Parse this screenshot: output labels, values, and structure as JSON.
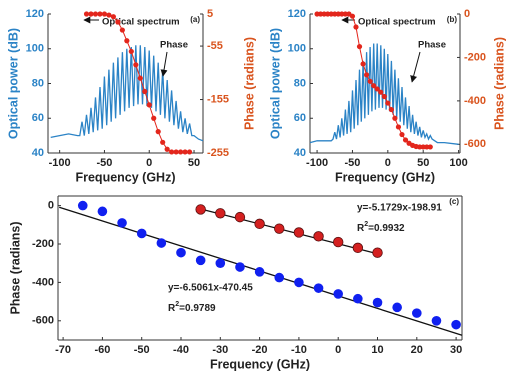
{
  "chart_data": [
    {
      "type": "line",
      "panel": "(a)",
      "xlabel": "Frequency (GHz)",
      "ylabel": "Optical power (dB)",
      "y2label": "Phase (radians)",
      "xlim": [
        -113,
        60
      ],
      "xticks": [
        -100,
        -50,
        0,
        50
      ],
      "ylim": [
        40,
        120
      ],
      "yticks": [
        40,
        60,
        80,
        100,
        120
      ],
      "y2lim": [
        -255,
        5
      ],
      "y2ticks": [
        5,
        -55,
        -155,
        -255
      ],
      "series": [
        {
          "name": "Optical spectrum",
          "color": "#2b83c6",
          "axis": "y",
          "x": [
            -110,
            -100,
            -90,
            -80,
            -77.5,
            -75,
            -72.5,
            -70,
            -67.5,
            -65,
            -62.5,
            -60,
            -57.5,
            -55,
            -52.5,
            -50,
            -47.5,
            -45,
            -42.5,
            -40,
            -37.5,
            -35,
            -32.5,
            -30,
            -27.5,
            -25,
            -22.5,
            -20,
            -17.5,
            -15,
            -12.5,
            -10,
            -7.5,
            -5,
            -2.5,
            0,
            2.5,
            5,
            7.5,
            10,
            12.5,
            15,
            17.5,
            20,
            22.5,
            25,
            27.5,
            30,
            32.5,
            35,
            37.5,
            40,
            42.5,
            45,
            47.5,
            50,
            55,
            60
          ],
          "values": [
            49,
            50,
            51,
            50,
            50,
            58,
            50,
            62,
            51,
            66,
            52,
            72,
            53,
            78,
            54,
            84,
            56,
            88,
            58,
            92,
            60,
            95,
            62,
            98,
            64,
            100,
            66,
            101,
            67,
            102,
            68,
            102,
            68,
            101,
            67,
            99,
            66,
            96,
            64,
            92,
            62,
            88,
            60,
            82,
            58,
            76,
            56,
            70,
            54,
            64,
            52,
            60,
            51,
            57,
            50,
            50,
            48,
            47
          ]
        },
        {
          "name": "Phase",
          "color": "#e3261c",
          "axis": "y2",
          "x": [
            -70,
            -65,
            -60,
            -55,
            -50,
            -45,
            -40,
            -35,
            -30,
            -25,
            -20,
            -15,
            -10,
            -5,
            0,
            5,
            10,
            15,
            20,
            25,
            30,
            35,
            40,
            45
          ],
          "values": [
            5,
            5,
            5,
            5,
            5,
            3,
            0,
            -10,
            -25,
            -45,
            -65,
            -90,
            -115,
            -140,
            -165,
            -190,
            -215,
            -235,
            -248,
            -253,
            -253,
            -253,
            -253,
            -253
          ]
        }
      ]
    },
    {
      "type": "line",
      "panel": "(b)",
      "xlabel": "Frequency (GHz)",
      "ylabel": "Optical power (dB)",
      "y2label": "Phase (radians)",
      "xlim": [
        -110,
        102
      ],
      "xticks": [
        -100,
        -50,
        0,
        50,
        100
      ],
      "ylim": [
        40,
        120
      ],
      "yticks": [
        40,
        60,
        80,
        100,
        120
      ],
      "y2lim": [
        -640,
        0
      ],
      "y2ticks": [
        0,
        -200,
        -400,
        -600
      ],
      "series": [
        {
          "name": "Optical spectrum",
          "color": "#2b83c6",
          "axis": "y",
          "x": [
            -110,
            -100,
            -90,
            -80,
            -77.5,
            -75,
            -72.5,
            -70,
            -67.5,
            -65,
            -62.5,
            -60,
            -57.5,
            -55,
            -52.5,
            -50,
            -47.5,
            -45,
            -42.5,
            -40,
            -37.5,
            -35,
            -32.5,
            -30,
            -27.5,
            -25,
            -22.5,
            -20,
            -17.5,
            -15,
            -12.5,
            -10,
            -7.5,
            -5,
            -2.5,
            0,
            2.5,
            5,
            7.5,
            10,
            12.5,
            15,
            17.5,
            20,
            22.5,
            25,
            27.5,
            30,
            32.5,
            35,
            37.5,
            40,
            42.5,
            45,
            47.5,
            50,
            52.5,
            55,
            57.5,
            60,
            62.5,
            70,
            80,
            100
          ],
          "values": [
            46,
            47,
            47,
            47,
            48,
            52,
            48,
            56,
            49,
            60,
            50,
            65,
            51,
            70,
            52,
            76,
            54,
            82,
            56,
            88,
            58,
            93,
            60,
            98,
            62,
            101,
            64,
            103,
            65,
            103,
            66,
            102,
            66,
            100,
            65,
            97,
            64,
            93,
            62,
            88,
            60,
            83,
            58,
            78,
            56,
            72,
            54,
            67,
            52,
            62,
            51,
            58,
            50,
            55,
            49,
            53,
            49,
            51,
            48,
            50,
            48,
            46,
            46,
            45
          ]
        },
        {
          "name": "Phase",
          "color": "#e3261c",
          "axis": "y2",
          "x": [
            -100,
            -95,
            -90,
            -85,
            -80,
            -75,
            -70,
            -65,
            -60,
            -55,
            -50,
            -45,
            -40,
            -35,
            -30,
            -25,
            -20,
            -15,
            -10,
            -5,
            0,
            5,
            10,
            15,
            20,
            25,
            30,
            35,
            40,
            45,
            50,
            55,
            60
          ],
          "values": [
            0,
            0,
            0,
            0,
            0,
            0,
            0,
            0,
            0,
            0,
            -10,
            -60,
            -150,
            -230,
            -280,
            -310,
            -330,
            -345,
            -360,
            -380,
            -410,
            -440,
            -480,
            -520,
            -555,
            -580,
            -595,
            -605,
            -610,
            -612,
            -612,
            -612,
            -612
          ]
        }
      ]
    },
    {
      "type": "scatter",
      "panel": "(c)",
      "xlabel": "Frequency (GHz)",
      "ylabel": "Phase (radians)",
      "xlim": [
        -71.3,
        31.5
      ],
      "xticks": [
        -70,
        -60,
        -50,
        -40,
        -30,
        -20,
        -10,
        0,
        10,
        20,
        30
      ],
      "ylim": [
        -700,
        50
      ],
      "yticks": [
        0,
        -200,
        -400,
        -600
      ],
      "series": [
        {
          "color": "#1020f0",
          "x": [
            -65,
            -60,
            -55,
            -50,
            -45,
            -40,
            -35,
            -30,
            -25,
            -20,
            -15,
            -10,
            -5,
            0,
            5,
            10,
            15,
            20,
            25,
            30
          ],
          "values": [
            0,
            -30,
            -90,
            -145,
            -195,
            -245,
            -285,
            -300,
            -320,
            -345,
            -375,
            -400,
            -430,
            -460,
            -485,
            -505,
            -530,
            -560,
            -600,
            -620
          ],
          "fit": {
            "slope": -6.5061,
            "intercept": -470.45,
            "label": "y=-6.5061x-470.45",
            "r": "R",
            "sup": "2",
            "r2": "=0.9789"
          }
        },
        {
          "color": "#d42020",
          "x": [
            -35,
            -30,
            -25,
            -20,
            -15,
            -10,
            -5,
            0,
            5,
            10
          ],
          "values": [
            -20,
            -40,
            -60,
            -95,
            -120,
            -140,
            -160,
            -190,
            -220,
            -245
          ],
          "fit": {
            "slope": -5.1729,
            "intercept": -198.91,
            "label": "y=-5.1729x-198.91",
            "r": "R",
            "sup": "2",
            "r2": "=0.9932"
          }
        }
      ]
    }
  ]
}
